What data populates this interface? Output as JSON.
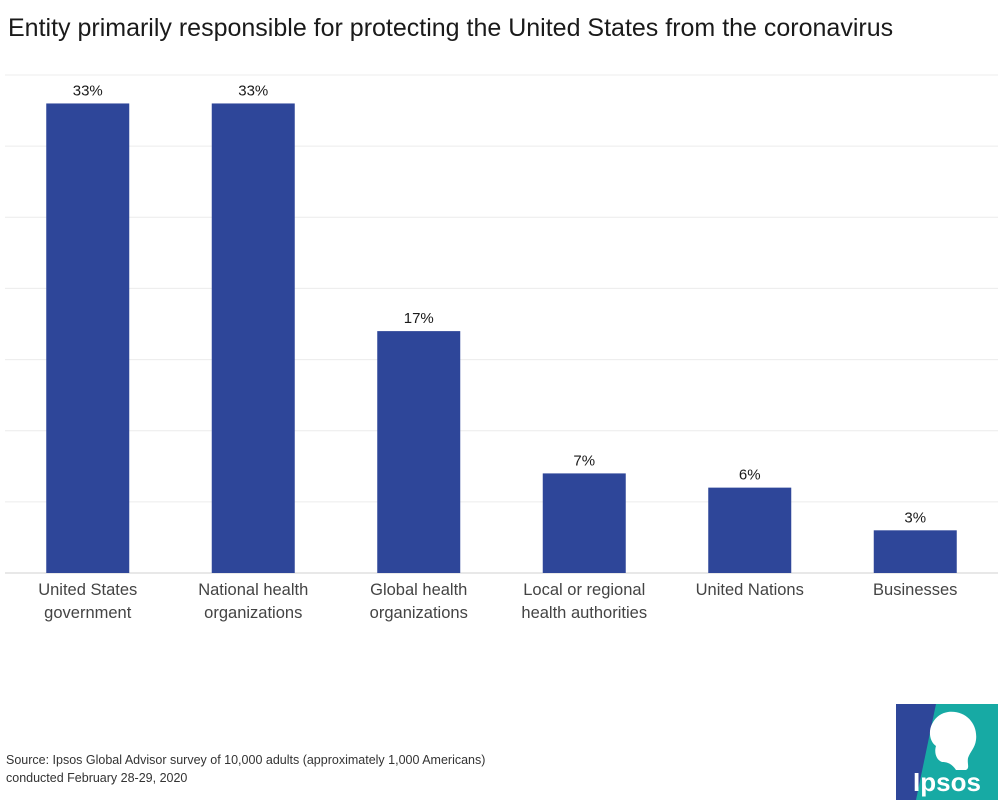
{
  "chart_data": {
    "type": "bar",
    "title": "Entity primarily responsible for protecting the United States from the coronavirus",
    "categories": [
      [
        "United States",
        "government"
      ],
      [
        "National health",
        "organizations"
      ],
      [
        "Global health",
        "organizations"
      ],
      [
        "Local or regional",
        "health authorities"
      ],
      [
        "United Nations"
      ],
      [
        "Businesses"
      ]
    ],
    "values": [
      33,
      33,
      17,
      7,
      6,
      3
    ],
    "value_labels": [
      "33%",
      "33%",
      "17%",
      "7%",
      "6%",
      "3%"
    ],
    "ylim": [
      0,
      35
    ],
    "grid": true,
    "xlabel": "",
    "ylabel": "",
    "bar_color": "#2e4699"
  },
  "source": {
    "line1": "Source: Ipsos Global Advisor survey of 10,000 adults (approximately 1,000 Americans)",
    "line2": "conducted February 28-29, 2020"
  },
  "logo": {
    "text": "Ipsos",
    "colors": {
      "blue": "#2e4699",
      "teal": "#17aaa4"
    }
  }
}
